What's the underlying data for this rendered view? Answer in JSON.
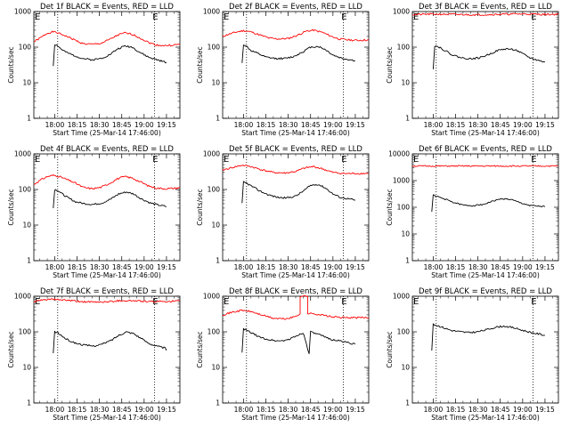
{
  "chart_data": [
    {
      "type": "line",
      "title": "Det 1f BLACK = Events, RED = LLD",
      "xlabel": "Start Time (25-Mar-14 17:46:00)",
      "ylabel": "Counts/sec",
      "yscale": "log",
      "ylim": [
        1,
        1000
      ],
      "y_ticks": [
        "1",
        "10",
        "100",
        "1000"
      ],
      "x_ticks": [
        "18:00",
        "18:15",
        "18:30",
        "18:45",
        "19:00",
        "19:15"
      ],
      "marker_label": "E",
      "series": [
        {
          "color": "#ff0000",
          "x": [
            "17:46",
            "17:51",
            "17:55",
            "17:59",
            "18:02",
            "18:07",
            "18:14",
            "18:19",
            "18:25",
            "18:31",
            "18:37",
            "18:42",
            "18:47",
            "18:52",
            "18:58",
            "19:03",
            "19:08",
            "19:14",
            "19:20",
            "19:24"
          ],
          "values": [
            140,
            190,
            245,
            270,
            250,
            210,
            155,
            125,
            120,
            128,
            165,
            215,
            250,
            230,
            175,
            135,
            115,
            110,
            115,
            120
          ]
        },
        {
          "color": "#000000",
          "x": [
            "17:59",
            "18:00",
            "18:02",
            "18:04",
            "18:08",
            "18:13",
            "18:19",
            "18:25",
            "18:31",
            "18:37",
            "18:42",
            "18:47",
            "18:52",
            "18:57",
            "19:03",
            "19:08",
            "19:12",
            "19:15"
          ],
          "values": [
            30,
            120,
            110,
            90,
            70,
            58,
            48,
            44,
            48,
            62,
            88,
            108,
            100,
            72,
            52,
            45,
            40,
            37
          ]
        }
      ]
    },
    {
      "type": "line",
      "title": "Det 2f BLACK = Events, RED = LLD",
      "xlabel": "Start Time (25-Mar-14 17:46:00)",
      "ylabel": "Counts/sec",
      "yscale": "log",
      "ylim": [
        1,
        1000
      ],
      "y_ticks": [
        "1",
        "10",
        "100",
        "1000"
      ],
      "x_ticks": [
        "18:00",
        "18:15",
        "18:30",
        "18:45",
        "19:00",
        "19:15"
      ],
      "marker_label": "E",
      "series": [
        {
          "color": "#ff0000",
          "x": [
            "17:46",
            "17:50",
            "17:55",
            "18:00",
            "18:05",
            "18:11",
            "18:17",
            "18:23",
            "18:30",
            "18:36",
            "18:42",
            "18:47",
            "18:53",
            "18:59",
            "19:04",
            "19:10",
            "19:16",
            "19:24"
          ],
          "values": [
            200,
            230,
            265,
            290,
            270,
            220,
            180,
            170,
            175,
            215,
            280,
            300,
            260,
            200,
            170,
            160,
            155,
            160
          ]
        },
        {
          "color": "#000000",
          "x": [
            "17:59",
            "18:00",
            "18:02",
            "18:05",
            "18:10",
            "18:15",
            "18:21",
            "18:28",
            "18:34",
            "18:40",
            "18:45",
            "18:50",
            "18:55",
            "19:00",
            "19:05",
            "19:10",
            "19:15"
          ],
          "values": [
            35,
            120,
            105,
            80,
            65,
            52,
            48,
            48,
            55,
            75,
            100,
            105,
            85,
            60,
            50,
            45,
            42
          ]
        }
      ]
    },
    {
      "type": "line",
      "title": "Det 3f BLACK = Events, RED = LLD",
      "xlabel": "Start Time (25-Mar-14 17:46:00)",
      "ylabel": "Counts/sec",
      "yscale": "log",
      "ylim": [
        1,
        1000
      ],
      "y_ticks": [
        "1",
        "10",
        "100",
        "1000"
      ],
      "x_ticks": [
        "18:00",
        "18:15",
        "18:30",
        "18:45",
        "19:00",
        "19:15"
      ],
      "marker_label": "E",
      "series": [
        {
          "color": "#ff0000",
          "x": [
            "17:46",
            "18:00",
            "18:15",
            "18:30",
            "18:45",
            "19:00",
            "19:15",
            "19:24"
          ],
          "values": [
            820,
            850,
            830,
            810,
            840,
            860,
            830,
            840
          ]
        },
        {
          "color": "#000000",
          "x": [
            "18:00",
            "18:01",
            "18:04",
            "18:08",
            "18:13",
            "18:19",
            "18:25",
            "18:31",
            "18:37",
            "18:43",
            "18:49",
            "18:55",
            "19:00",
            "19:05",
            "19:10",
            "19:15"
          ],
          "values": [
            25,
            110,
            100,
            80,
            60,
            50,
            47,
            50,
            62,
            80,
            90,
            85,
            65,
            50,
            43,
            38
          ]
        }
      ]
    },
    {
      "type": "line",
      "title": "Det 4f BLACK = Events, RED = LLD",
      "xlabel": "Start Time (25-Mar-14 17:46:00)",
      "ylabel": "Counts/sec",
      "yscale": "log",
      "ylim": [
        1,
        1000
      ],
      "y_ticks": [
        "1",
        "10",
        "100",
        "1000"
      ],
      "x_ticks": [
        "18:00",
        "18:15",
        "18:30",
        "18:45",
        "19:00",
        "19:15"
      ],
      "marker_label": "E",
      "series": [
        {
          "color": "#ff0000",
          "x": [
            "17:46",
            "17:51",
            "17:55",
            "17:59",
            "18:02",
            "18:07",
            "18:14",
            "18:19",
            "18:25",
            "18:31",
            "18:37",
            "18:42",
            "18:47",
            "18:52",
            "18:58",
            "19:03",
            "19:08",
            "19:14",
            "19:20",
            "19:24"
          ],
          "values": [
            140,
            190,
            230,
            250,
            240,
            200,
            150,
            115,
            105,
            115,
            150,
            200,
            230,
            210,
            160,
            125,
            110,
            105,
            108,
            112
          ]
        },
        {
          "color": "#000000",
          "x": [
            "17:59",
            "18:00",
            "18:02",
            "18:05",
            "18:09",
            "18:14",
            "18:20",
            "18:26",
            "18:32",
            "18:38",
            "18:43",
            "18:48",
            "18:53",
            "18:58",
            "19:04",
            "19:09",
            "19:15"
          ],
          "values": [
            30,
            100,
            95,
            75,
            58,
            45,
            40,
            38,
            42,
            55,
            75,
            85,
            75,
            55,
            42,
            37,
            33
          ]
        }
      ]
    },
    {
      "type": "line",
      "title": "Det 5f BLACK = Events, RED = LLD",
      "xlabel": "Start Time (25-Mar-14 17:46:00)",
      "ylabel": "Counts/sec",
      "yscale": "log",
      "ylim": [
        1,
        1000
      ],
      "y_ticks": [
        "1",
        "10",
        "100",
        "1000"
      ],
      "x_ticks": [
        "18:00",
        "18:15",
        "18:30",
        "18:45",
        "19:00",
        "19:15"
      ],
      "marker_label": "E",
      "series": [
        {
          "color": "#ff0000",
          "x": [
            "17:46",
            "17:53",
            "17:59",
            "18:05",
            "18:12",
            "18:20",
            "18:28",
            "18:35",
            "18:41",
            "18:47",
            "18:53",
            "19:00",
            "19:08",
            "19:16",
            "19:24"
          ],
          "values": [
            350,
            420,
            480,
            440,
            360,
            300,
            290,
            320,
            400,
            440,
            380,
            300,
            280,
            280,
            285
          ]
        },
        {
          "color": "#000000",
          "x": [
            "17:59",
            "18:00",
            "18:02",
            "18:06",
            "18:11",
            "18:17",
            "18:23",
            "18:29",
            "18:35",
            "18:40",
            "18:45",
            "18:50",
            "18:55",
            "19:00",
            "19:05",
            "19:10",
            "19:15"
          ],
          "values": [
            40,
            160,
            150,
            120,
            90,
            70,
            60,
            58,
            65,
            90,
            130,
            140,
            110,
            75,
            60,
            55,
            50
          ]
        }
      ]
    },
    {
      "type": "line",
      "title": "Det 6f BLACK = Events, RED = LLD",
      "xlabel": "Start Time (25-Mar-14 17:46:00)",
      "ylabel": "Counts/sec",
      "yscale": "log",
      "ylim": [
        1,
        10000
      ],
      "y_ticks": [
        "1",
        "10",
        "100",
        "1000",
        "10000"
      ],
      "x_ticks": [
        "18:00",
        "18:15",
        "18:30",
        "18:45",
        "19:00",
        "19:15"
      ],
      "marker_label": "E",
      "series": [
        {
          "color": "#ff0000",
          "x": [
            "17:46",
            "19:24"
          ],
          "values": [
            3500,
            3500
          ]
        },
        {
          "color": "#000000",
          "x": [
            "17:59",
            "18:00",
            "18:03",
            "18:08",
            "18:14",
            "18:20",
            "18:27",
            "18:34",
            "18:40",
            "18:46",
            "18:52",
            "18:58",
            "19:04",
            "19:10",
            "19:15"
          ],
          "values": [
            70,
            280,
            250,
            200,
            150,
            120,
            115,
            130,
            170,
            210,
            195,
            150,
            120,
            110,
            105
          ]
        }
      ]
    },
    {
      "type": "line",
      "title": "Det 7f BLACK = Events, RED = LLD",
      "xlabel": "Start Time (25-Mar-14 17:46:00)",
      "ylabel": "Counts/sec",
      "yscale": "log",
      "ylim": [
        1,
        1000
      ],
      "y_ticks": [
        "1",
        "10",
        "100",
        "1000"
      ],
      "x_ticks": [
        "18:00",
        "18:15",
        "18:30",
        "18:45",
        "19:00",
        "19:15"
      ],
      "marker_label": "E",
      "series": [
        {
          "color": "#ff0000",
          "x": [
            "17:46",
            "17:55",
            "18:05",
            "18:15",
            "18:25",
            "18:35",
            "18:45",
            "18:55",
            "19:05",
            "19:15",
            "19:24"
          ],
          "values": [
            700,
            820,
            790,
            720,
            680,
            700,
            760,
            740,
            700,
            720,
            730
          ]
        },
        {
          "color": "#000000",
          "x": [
            "17:59",
            "18:00",
            "18:02",
            "18:05",
            "18:09",
            "18:14",
            "18:20",
            "18:26",
            "18:32",
            "18:38",
            "18:43",
            "18:48",
            "18:53",
            "18:58",
            "19:03",
            "19:08",
            "19:14",
            "19:15"
          ],
          "values": [
            25,
            100,
            95,
            75,
            58,
            48,
            42,
            40,
            45,
            58,
            80,
            100,
            90,
            65,
            48,
            40,
            35,
            30
          ]
        }
      ]
    },
    {
      "type": "line",
      "title": "Det 8f BLACK = Events, RED = LLD",
      "xlabel": "Start Time (25-Mar-14 17:46:00)",
      "ylabel": "Counts/sec",
      "yscale": "log",
      "ylim": [
        1,
        1000
      ],
      "y_ticks": [
        "1",
        "10",
        "100",
        "1000"
      ],
      "x_ticks": [
        "18:00",
        "18:15",
        "18:30",
        "18:45",
        "19:00",
        "19:15"
      ],
      "marker_label": "E",
      "series": [
        {
          "color": "#ff0000",
          "x": [
            "17:46",
            "17:53",
            "17:59",
            "18:05",
            "18:12",
            "18:20",
            "18:28",
            "18:34",
            "18:38",
            "18:38",
            "18:43",
            "18:43",
            "18:48",
            "18:54",
            "19:00",
            "19:08",
            "19:16",
            "19:24"
          ],
          "values": [
            300,
            360,
            400,
            370,
            300,
            240,
            230,
            260,
            320,
            1000,
            1000,
            330,
            320,
            290,
            260,
            250,
            250,
            250
          ]
        },
        {
          "color": "#000000",
          "x": [
            "17:59",
            "18:00",
            "18:02",
            "18:06",
            "18:11",
            "18:17",
            "18:24",
            "18:30",
            "18:35",
            "18:40",
            "18:44",
            "18:45",
            "18:46",
            "18:50",
            "18:55",
            "19:00",
            "19:05",
            "19:10",
            "19:15"
          ],
          "values": [
            25,
            120,
            110,
            90,
            70,
            60,
            55,
            60,
            75,
            95,
            25,
            100,
            95,
            85,
            70,
            60,
            55,
            50,
            45
          ]
        }
      ]
    },
    {
      "type": "line",
      "title": "Det 9f BLACK = Events, RED = LLD",
      "xlabel": "Start Time (25-Mar-14 17:46:00)",
      "ylabel": "Counts/sec",
      "yscale": "log",
      "ylim": [
        1,
        1000
      ],
      "y_ticks": [
        "1",
        "10",
        "100",
        "1000"
      ],
      "x_ticks": [
        "18:00",
        "18:15",
        "18:30",
        "18:45",
        "19:00",
        "19:15"
      ],
      "marker_label": "E",
      "series": [
        {
          "color": "#000000",
          "x": [
            "17:59",
            "18:00",
            "18:03",
            "18:07",
            "18:12",
            "18:18",
            "18:24",
            "18:30",
            "18:36",
            "18:42",
            "18:48",
            "18:54",
            "19:00",
            "19:06",
            "19:12",
            "19:15"
          ],
          "values": [
            30,
            160,
            150,
            130,
            110,
            100,
            95,
            100,
            115,
            135,
            145,
            130,
            110,
            95,
            85,
            80
          ]
        }
      ]
    }
  ]
}
